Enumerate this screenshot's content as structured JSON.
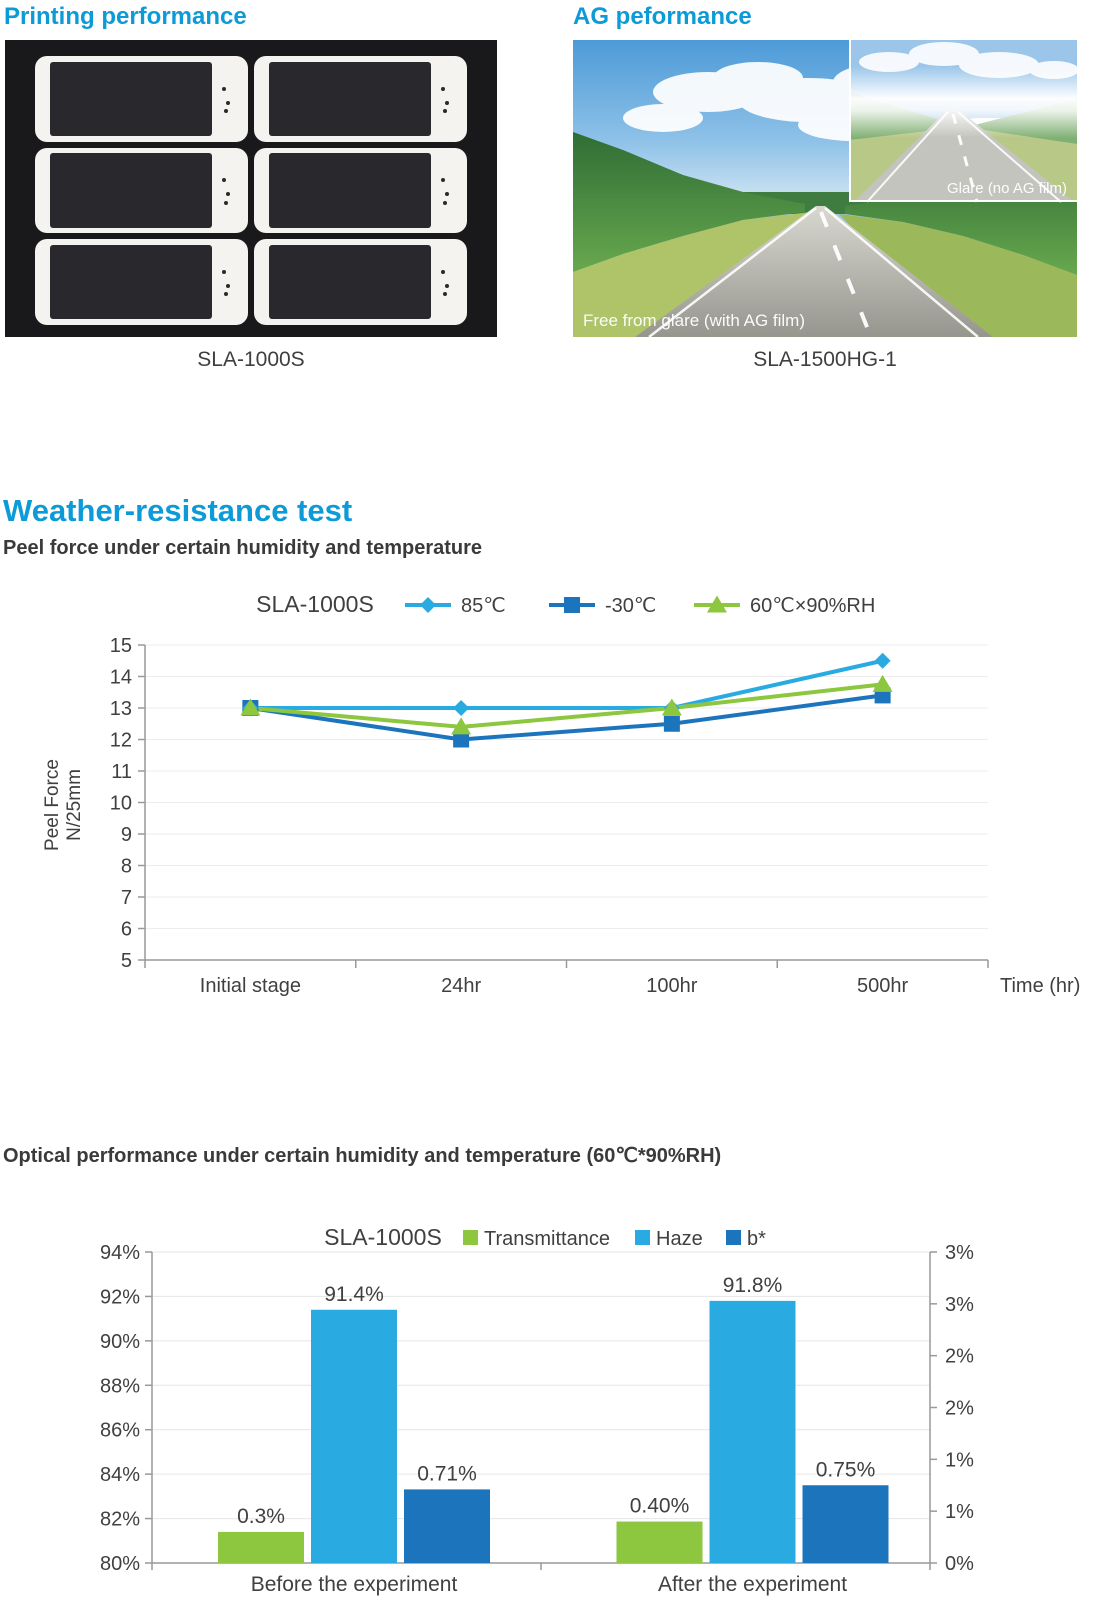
{
  "printing": {
    "title": "Printing performance",
    "caption": "SLA-1000S",
    "phone_rows": 3,
    "phone_cols": 2
  },
  "ag": {
    "title": "AG peformance",
    "caption": "SLA-1500HG-1",
    "main_label": "Free from glare (with AG film)",
    "inset_label": "Glare (no AG film)"
  },
  "weather": {
    "title": "Weather-resistance test",
    "subtitle": "Peel force under certain humidity and temperature"
  },
  "optical": {
    "title": "Optical performance under certain humidity and temperature (60℃*90%RH)"
  },
  "colors": {
    "heading_blue": "#0C9BD7",
    "series_cyan": "#29ABE2",
    "series_blue": "#1C75BC",
    "series_green": "#8DC63F",
    "chart_text": "#404040",
    "axis_line": "#999999",
    "grid_line": "#ECECEC"
  },
  "chart_data": [
    {
      "type": "line",
      "title": "SLA-1000S",
      "categories": [
        "Initial stage",
        "24hr",
        "100hr",
        "500hr"
      ],
      "series": [
        {
          "name": "85℃",
          "marker": "diamond",
          "color": "#29ABE2",
          "values": [
            13,
            13,
            13,
            14.5
          ]
        },
        {
          "name": "-30℃",
          "marker": "square",
          "color": "#1C75BC",
          "values": [
            13,
            12,
            12.5,
            13.4
          ]
        },
        {
          "name": "60℃×90%RH",
          "marker": "triangle",
          "color": "#8DC63F",
          "values": [
            13,
            12.4,
            13,
            13.75
          ]
        }
      ],
      "ylabel_line1": "Peel Force",
      "ylabel_line2": "N/25mm",
      "xlabel": "Time (hr)",
      "ylim": [
        5,
        15
      ],
      "ytick_step": 1,
      "grid": true,
      "legend_position": "top"
    },
    {
      "type": "bar",
      "title": "SLA-1000S",
      "categories": [
        "Before the experiment",
        "After the experiment"
      ],
      "series": [
        {
          "name": "Transmittance",
          "color": "#8DC63F",
          "axis": "right",
          "values": [
            0.3,
            0.4
          ],
          "labels": [
            "0.3%",
            "0.40%"
          ]
        },
        {
          "name": "Haze",
          "color": "#29ABE2",
          "axis": "left",
          "values": [
            91.4,
            91.8
          ],
          "labels": [
            "91.4%",
            "91.8%"
          ]
        },
        {
          "name": "b*",
          "color": "#1C75BC",
          "axis": "right",
          "values": [
            0.71,
            0.75
          ],
          "labels": [
            "0.71%",
            "0.75%"
          ]
        }
      ],
      "left_axis": {
        "min": 80,
        "max": 94,
        "tick_labels": [
          "94%",
          "92%",
          "90%",
          "88%",
          "86%",
          "84%",
          "82%",
          "80%"
        ]
      },
      "right_axis": {
        "min": 0,
        "max": 3,
        "tick_labels": [
          "3%",
          "3%",
          "2%",
          "2%",
          "1%",
          "1%",
          "0%"
        ]
      },
      "grid": true,
      "legend_position": "top"
    }
  ]
}
